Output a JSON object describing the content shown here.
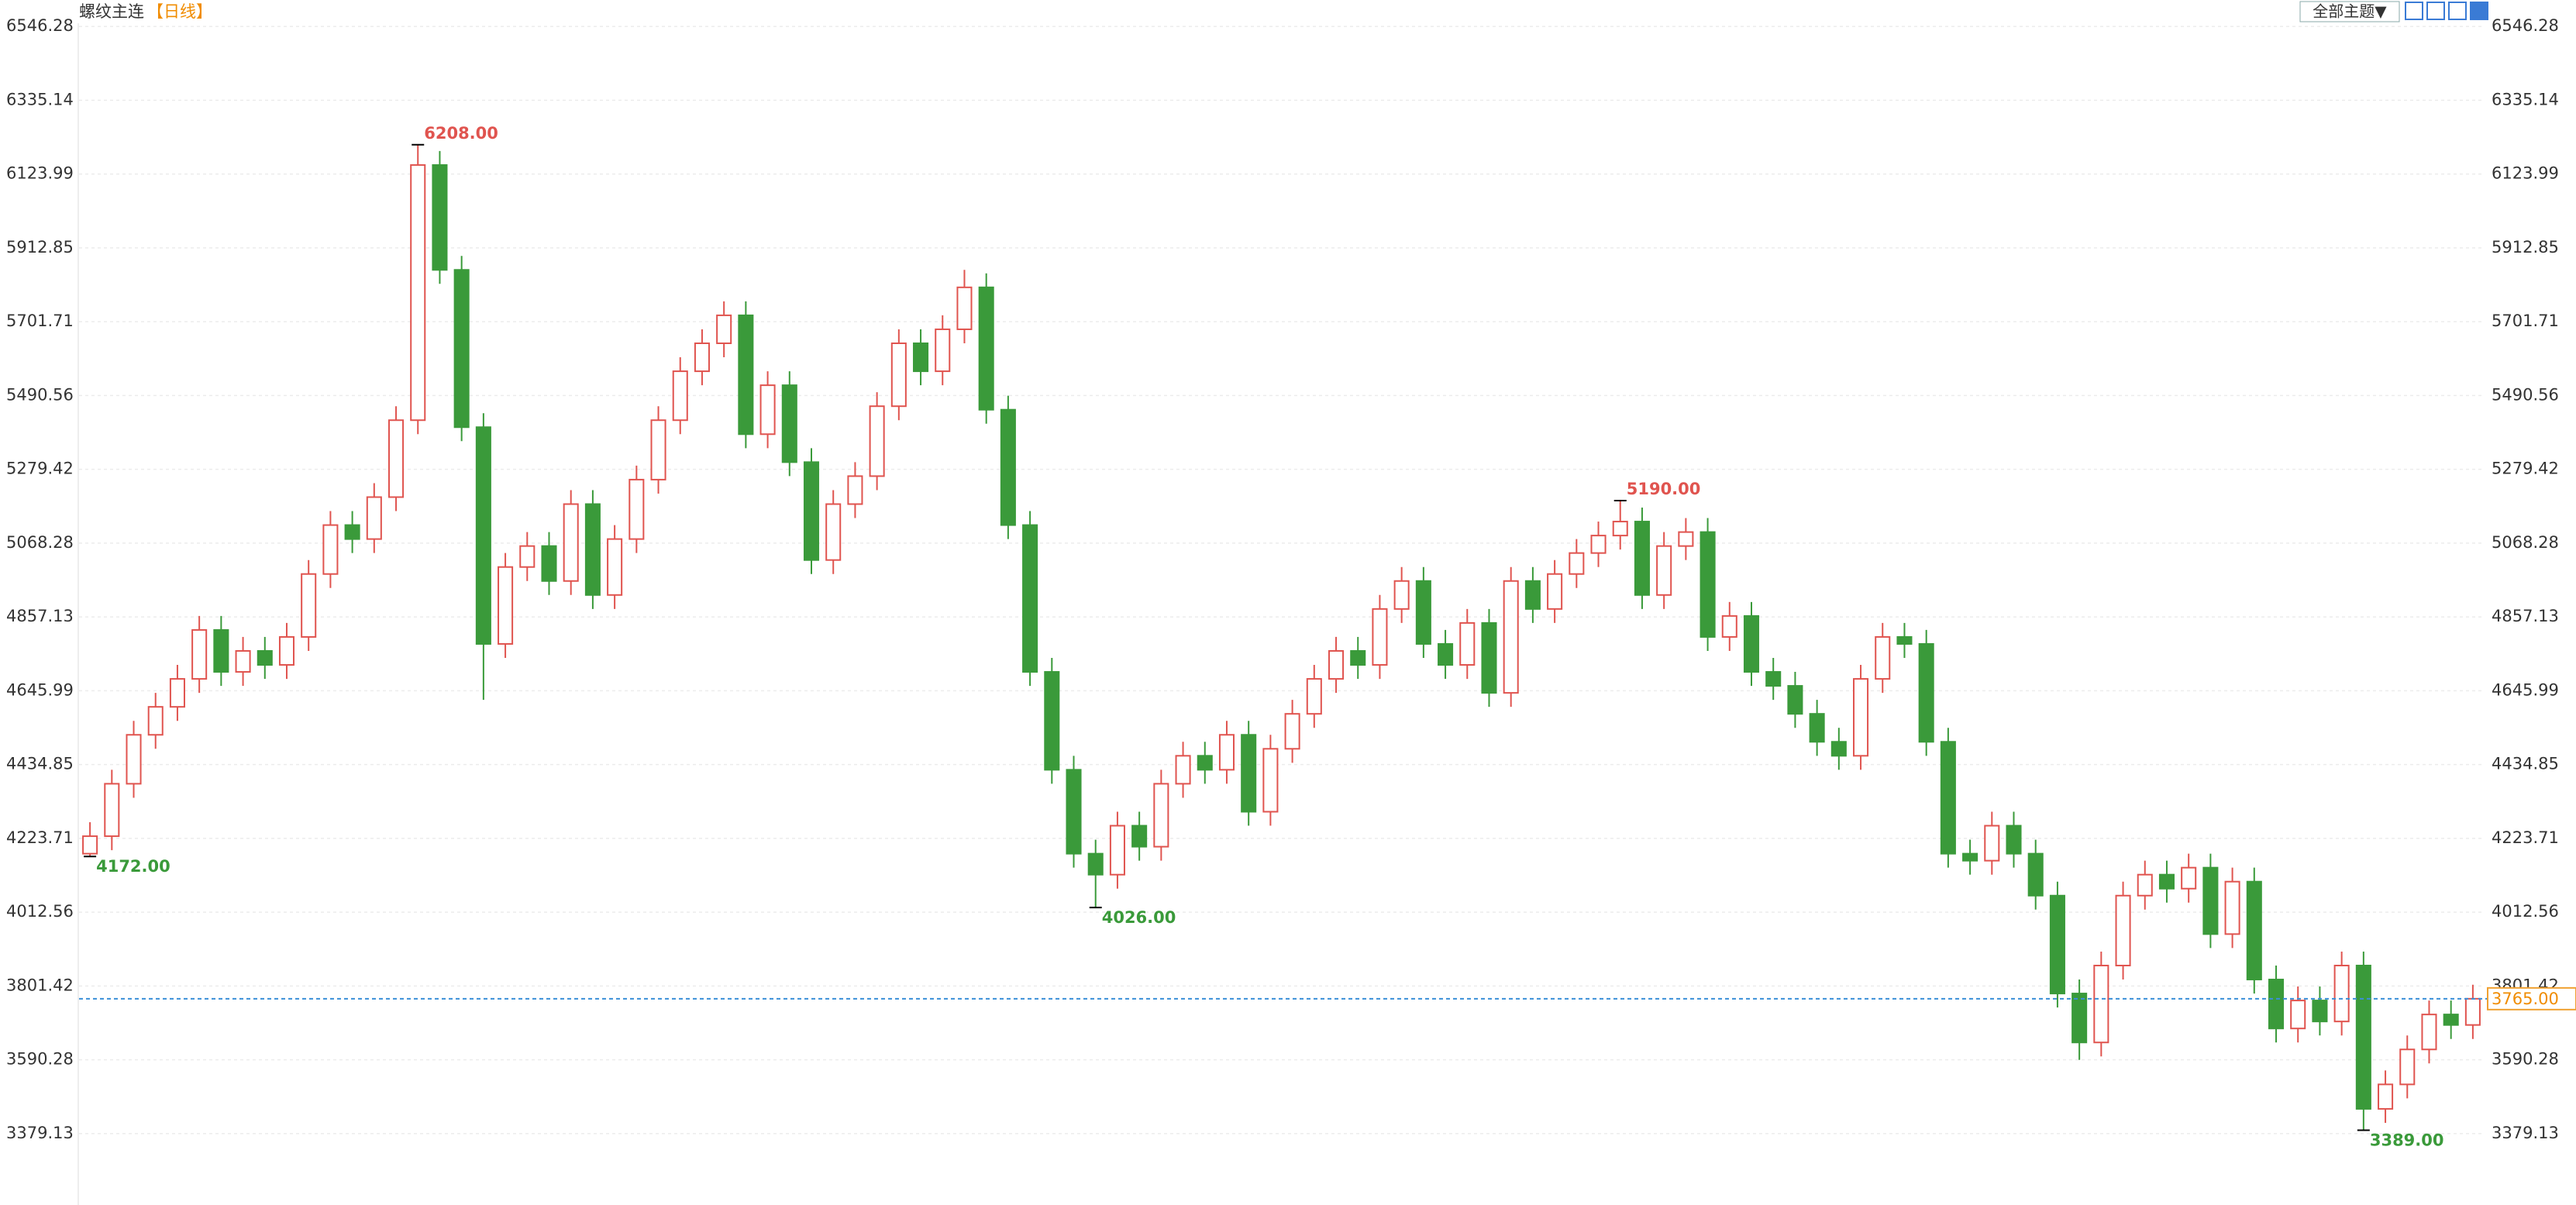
{
  "chart_data": {
    "type": "candlestick",
    "title": "螺纹主连",
    "period": "【日线】",
    "theme_button": "全部主题▼",
    "up_color": "#e0544f",
    "down_color": "#3a9a3a",
    "ylim": [
      3175,
      6622
    ],
    "yticks": [
      {
        "value": 3379.13,
        "label": "3379.13"
      },
      {
        "value": 3590.28,
        "label": "3590.28"
      },
      {
        "value": 3801.42,
        "label": "3801.42"
      },
      {
        "value": 4012.56,
        "label": "4012.56"
      },
      {
        "value": 4223.71,
        "label": "4223.71"
      },
      {
        "value": 4434.85,
        "label": "4434.85"
      },
      {
        "value": 4645.99,
        "label": "4645.99"
      },
      {
        "value": 4857.13,
        "label": "4857.13"
      },
      {
        "value": 5068.28,
        "label": "5068.28"
      },
      {
        "value": 5279.42,
        "label": "5279.42"
      },
      {
        "value": 5490.56,
        "label": "5490.56"
      },
      {
        "value": 5701.71,
        "label": "5701.71"
      },
      {
        "value": 5912.85,
        "label": "5912.85"
      },
      {
        "value": 6123.99,
        "label": "6123.99"
      },
      {
        "value": 6335.14,
        "label": "6335.14"
      },
      {
        "value": 6546.28,
        "label": "6546.28"
      }
    ],
    "grid": true,
    "open": [
      4180,
      4230,
      4380,
      4520,
      4600,
      4680,
      4820,
      4700,
      4760,
      4720,
      4800,
      4980,
      5120,
      5080,
      5200,
      5420,
      6150,
      5850,
      5400,
      4780,
      5000,
      5060,
      4960,
      5180,
      4920,
      5080,
      5250,
      5420,
      5560,
      5640,
      5720,
      5380,
      5520,
      5300,
      5020,
      5180,
      5260,
      5460,
      5640,
      5560,
      5680,
      5800,
      5450,
      5120,
      4700,
      4420,
      4180,
      4120,
      4260,
      4200,
      4380,
      4460,
      4420,
      4520,
      4300,
      4480,
      4580,
      4680,
      4760,
      4720,
      4880,
      4960,
      4780,
      4720,
      4840,
      4640,
      4960,
      4880,
      4980,
      5040,
      5090,
      5130,
      4920,
      5060,
      5100,
      4800,
      4860,
      4700,
      4660,
      4580,
      4500,
      4460,
      4680,
      4800,
      4780,
      4500,
      4180,
      4160,
      4260,
      4180,
      4060,
      3780,
      3640,
      3860,
      4060,
      4120,
      4080,
      4140,
      3950,
      4100,
      3820,
      3680,
      3760,
      3700,
      3860,
      3450,
      3520,
      3620,
      3720,
      3690
    ],
    "high": [
      4270,
      4420,
      4560,
      4640,
      4720,
      4860,
      4860,
      4800,
      4800,
      4840,
      5020,
      5160,
      5160,
      5240,
      5460,
      6208,
      6190,
      5890,
      5440,
      5040,
      5100,
      5100,
      5220,
      5220,
      5120,
      5290,
      5460,
      5600,
      5680,
      5760,
      5760,
      5560,
      5560,
      5340,
      5220,
      5300,
      5500,
      5680,
      5680,
      5720,
      5850,
      5840,
      5490,
      5160,
      4740,
      4460,
      4220,
      4300,
      4300,
      4420,
      4500,
      4500,
      4560,
      4560,
      4520,
      4620,
      4720,
      4800,
      4800,
      4920,
      5000,
      5000,
      4820,
      4880,
      4880,
      5000,
      5000,
      5020,
      5080,
      5130,
      5190,
      5170,
      5100,
      5140,
      5140,
      4900,
      4900,
      4740,
      4700,
      4620,
      4540,
      4720,
      4840,
      4840,
      4820,
      4540,
      4220,
      4300,
      4300,
      4220,
      4100,
      3820,
      3900,
      4100,
      4160,
      4160,
      4180,
      4180,
      4140,
      4140,
      3860,
      3800,
      3800,
      3900,
      3900,
      3560,
      3660,
      3760,
      3760,
      3805
    ],
    "low": [
      4172,
      4190,
      4340,
      4480,
      4560,
      4640,
      4660,
      4660,
      4680,
      4680,
      4760,
      4940,
      5040,
      5040,
      5160,
      5380,
      5810,
      5360,
      4620,
      4740,
      4960,
      4920,
      4920,
      4880,
      4880,
      5040,
      5210,
      5380,
      5520,
      5600,
      5340,
      5340,
      5260,
      4980,
      4980,
      5140,
      5220,
      5420,
      5520,
      5520,
      5640,
      5410,
      5080,
      4660,
      4380,
      4140,
      4026,
      4080,
      4160,
      4160,
      4340,
      4380,
      4380,
      4260,
      4260,
      4440,
      4540,
      4640,
      4680,
      4680,
      4840,
      4740,
      4680,
      4680,
      4600,
      4600,
      4840,
      4840,
      4940,
      5000,
      5050,
      4880,
      4880,
      5020,
      4760,
      4760,
      4660,
      4620,
      4540,
      4460,
      4420,
      4420,
      4640,
      4740,
      4460,
      4140,
      4120,
      4120,
      4140,
      4020,
      3740,
      3590,
      3600,
      3820,
      4020,
      4040,
      4040,
      3910,
      3910,
      3780,
      3640,
      3640,
      3660,
      3660,
      3389,
      3410,
      3480,
      3580,
      3650,
      3650
    ],
    "close": [
      4230,
      4380,
      4520,
      4600,
      4680,
      4820,
      4700,
      4760,
      4720,
      4800,
      4980,
      5120,
      5080,
      5200,
      5420,
      6150,
      5850,
      5400,
      4780,
      5000,
      5060,
      4960,
      5180,
      4920,
      5080,
      5250,
      5420,
      5560,
      5640,
      5720,
      5380,
      5520,
      5300,
      5020,
      5180,
      5260,
      5460,
      5640,
      5560,
      5680,
      5800,
      5450,
      5120,
      4700,
      4420,
      4180,
      4120,
      4260,
      4200,
      4380,
      4460,
      4420,
      4520,
      4300,
      4480,
      4580,
      4680,
      4760,
      4720,
      4880,
      4960,
      4780,
      4720,
      4840,
      4640,
      4960,
      4880,
      4980,
      5040,
      5090,
      5130,
      4920,
      5060,
      5100,
      4800,
      4860,
      4700,
      4660,
      4580,
      4500,
      4460,
      4680,
      4800,
      4780,
      4500,
      4180,
      4160,
      4260,
      4180,
      4060,
      3780,
      3640,
      3860,
      4060,
      4120,
      4080,
      4140,
      3950,
      4100,
      3820,
      3680,
      3760,
      3700,
      3860,
      3450,
      3520,
      3620,
      3720,
      3690,
      3765
    ],
    "annotations": [
      {
        "value": 6208,
        "label": "6208.00"
      },
      {
        "value": 4172,
        "label": "4172.00"
      },
      {
        "value": 4026,
        "label": "4026.00"
      },
      {
        "value": 5190,
        "label": "5190.00"
      },
      {
        "value": 3389,
        "label": "3389.00"
      }
    ],
    "last_price": {
      "value": 3765,
      "label": "3765.00"
    }
  }
}
